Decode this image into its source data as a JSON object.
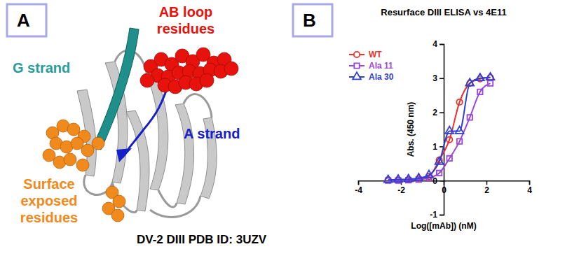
{
  "panel_labels": [
    "A",
    "B"
  ],
  "diagram": {
    "labels": [
      {
        "text": [
          "AB loop",
          "residues"
        ],
        "color": "#e8120c"
      },
      {
        "text": [
          "G strand"
        ],
        "color": "#2a9d9a"
      },
      {
        "text": [
          "A strand"
        ],
        "color": "#1620c8"
      },
      {
        "text": [
          "Surface",
          "exposed",
          "residues"
        ],
        "color": "#f08a1c"
      }
    ],
    "caption": "DV-2 DIII PDB ID: 3UZV"
  },
  "chart_data": {
    "type": "line",
    "title": "Resurface DIII ELISA vs 4E11",
    "x_label": "Log([mAb]) (nM)",
    "y_label": "Abs. (450 nm)",
    "x": [
      -2.6,
      -2.13,
      -1.65,
      -1.17,
      -0.69,
      -0.21,
      0.27,
      0.74,
      1.22,
      1.7,
      2.18
    ],
    "series": [
      {
        "name": "WT",
        "color": "#e8322c",
        "marker": "circle",
        "values": [
          0.02,
          0.02,
          0.03,
          0.05,
          0.12,
          0.6,
          1.2,
          2.3,
          2.85,
          2.98,
          3.02
        ]
      },
      {
        "name": "Ala 11",
        "color": "#9a46d8",
        "marker": "square",
        "values": [
          0.0,
          0.0,
          0.01,
          0.03,
          0.08,
          0.22,
          0.65,
          1.15,
          1.85,
          2.6,
          2.85
        ]
      },
      {
        "name": "Ala 30",
        "color": "#2f3fd0",
        "marker": "triangle",
        "values": [
          0.02,
          0.03,
          0.04,
          0.07,
          0.16,
          0.55,
          1.45,
          1.45,
          2.85,
          3.0,
          3.02
        ]
      }
    ],
    "xlim": [
      -4,
      4
    ],
    "xticks": [
      -4,
      -2,
      0,
      2,
      4
    ],
    "ylim": [
      -1,
      4
    ],
    "yticks": [
      -1,
      0,
      1,
      2,
      3,
      4
    ],
    "legend": "upper left",
    "grid": false
  }
}
